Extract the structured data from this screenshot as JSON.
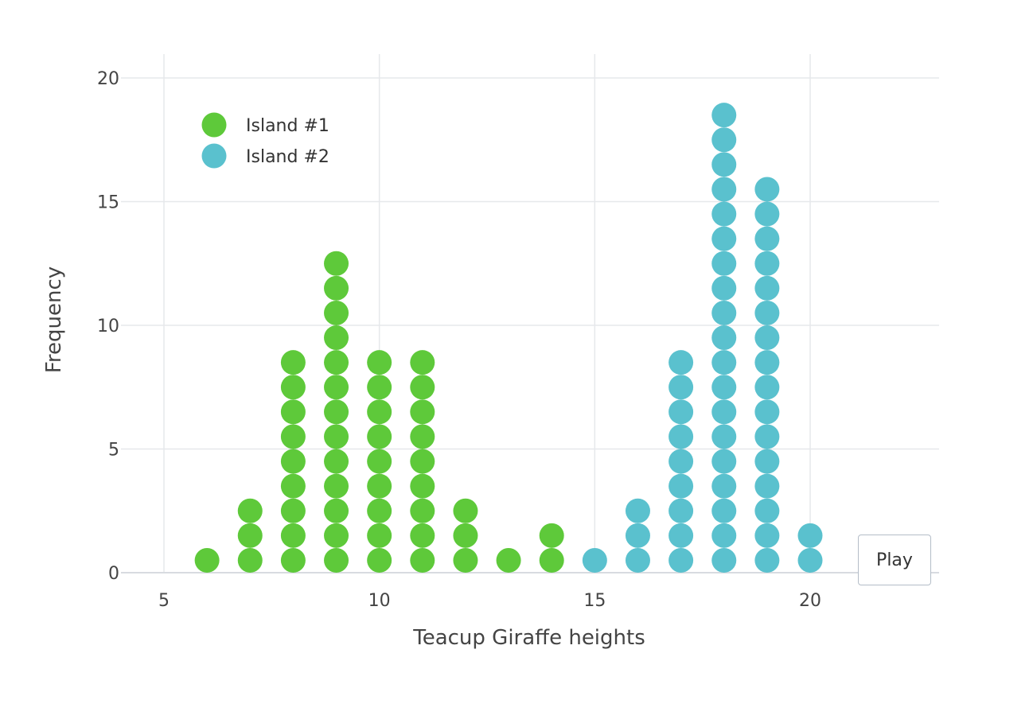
{
  "chart_data": {
    "type": "scatter",
    "subtype": "dot-plot",
    "xlabel": "Teacup Giraffe heights",
    "ylabel": "Frequency",
    "xlim": [
      4.3,
      23
    ],
    "ylim": [
      0,
      21
    ],
    "x_ticks": [
      5,
      10,
      15,
      20
    ],
    "y_ticks": [
      0,
      5,
      10,
      15,
      20
    ],
    "grid": true,
    "legend_position": "top-left",
    "series": [
      {
        "name": "Island #1",
        "color": "#5ec93a",
        "x": [
          6,
          7,
          8,
          9,
          10,
          11,
          12,
          13,
          14
        ],
        "counts": [
          1,
          3,
          9,
          13,
          9,
          9,
          3,
          1,
          2
        ]
      },
      {
        "name": "Island #2",
        "color": "#5ac1ce",
        "x": [
          15,
          16,
          17,
          18,
          19,
          20
        ],
        "counts": [
          1,
          3,
          9,
          19,
          16,
          2
        ]
      }
    ]
  },
  "controls": {
    "play_label": "Play"
  }
}
